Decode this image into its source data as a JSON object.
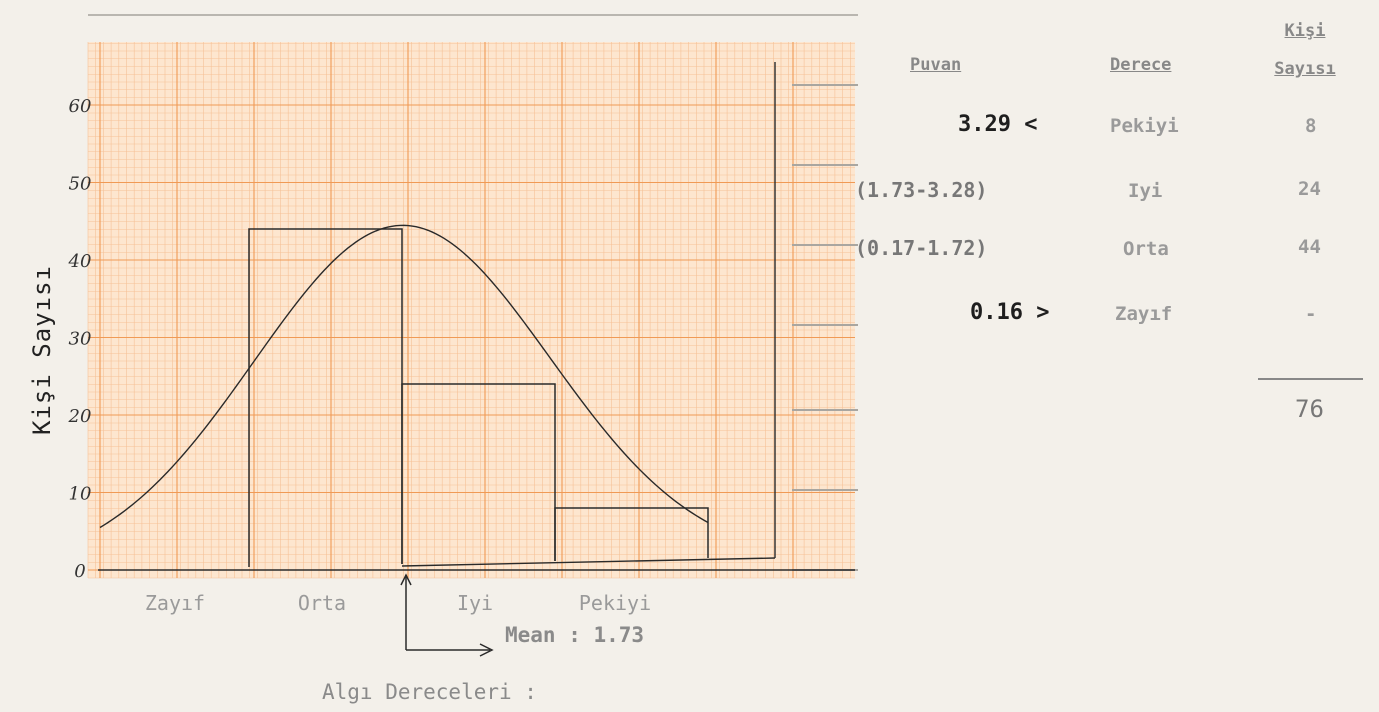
{
  "chart_data": {
    "type": "bar",
    "ylabel": "Kişi Sayısı",
    "xlabel": "Algı Dereceleri :",
    "categories": [
      "Zayıf",
      "Orta",
      "Iyi",
      "Pekiyi"
    ],
    "values": [
      0,
      44,
      24,
      8
    ],
    "ylim": [
      0,
      70
    ],
    "yticks": [
      "0",
      "10",
      "20",
      "30",
      "40",
      "50",
      "60"
    ],
    "curve": "normal distribution curve over histogram",
    "grid": true,
    "mean_label": "Mean : 1.73",
    "colors": {
      "grid_major": "#f09a55",
      "grid_minor": "#f6c197",
      "paper": "#fde6cf",
      "ink": "#2a2a2a"
    }
  },
  "table": {
    "headers": [
      "Puvan",
      "Derece",
      "Kişi Sayısı"
    ],
    "rows": [
      {
        "puvan": "3.29 <",
        "derece": "Pekiyi",
        "kisi": "8"
      },
      {
        "puvan": "(1.73-3.28)",
        "derece": "Iyi",
        "kisi": "24"
      },
      {
        "puvan": "(0.17-1.72)",
        "derece": "Orta",
        "kisi": "44"
      },
      {
        "puvan": "0.16 >",
        "derece": "Zayıf",
        "kisi": "-"
      }
    ],
    "total": "76"
  }
}
